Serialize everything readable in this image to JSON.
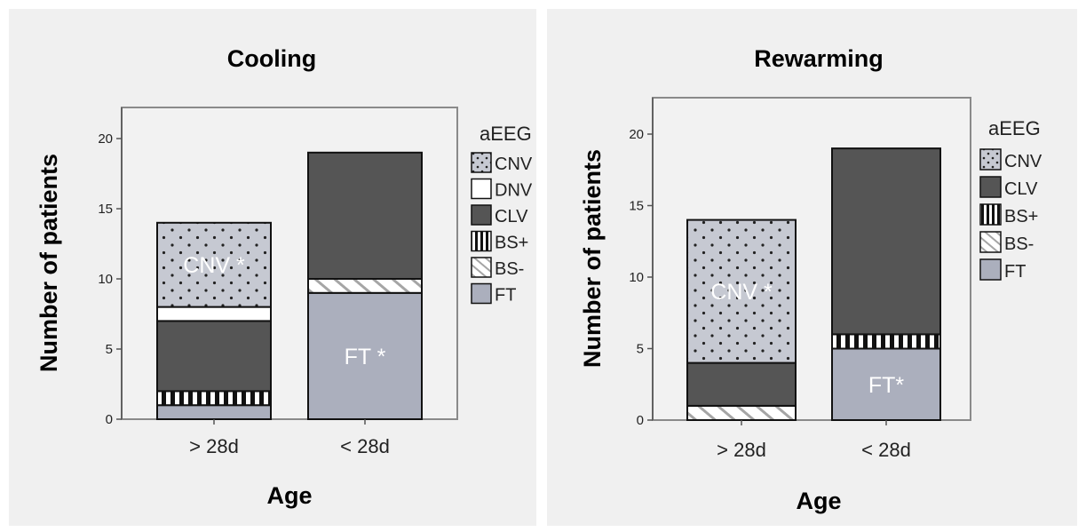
{
  "chart_data": [
    {
      "type": "bar",
      "stacked": true,
      "title": "Cooling",
      "xlabel": "Age",
      "ylabel": "Number of patients",
      "ylim": [
        0,
        20
      ],
      "yticks": [
        0,
        5,
        10,
        15,
        20
      ],
      "categories": [
        "> 28d",
        "< 28d"
      ],
      "legend_title": "aEEG",
      "legend": [
        "CNV",
        "DNV",
        "CLV",
        "BS+",
        "BS-",
        "FT"
      ],
      "series": [
        {
          "name": "FT",
          "values": [
            1,
            9
          ]
        },
        {
          "name": "BS+",
          "values": [
            1,
            0
          ]
        },
        {
          "name": "BS-",
          "values": [
            0,
            1
          ]
        },
        {
          "name": "CLV",
          "values": [
            5,
            9
          ]
        },
        {
          "name": "DNV",
          "values": [
            1,
            0
          ]
        },
        {
          "name": "CNV",
          "values": [
            6,
            0
          ]
        }
      ],
      "annotations": [
        {
          "series": "CNV",
          "category": "> 28d",
          "text": "CNV *"
        },
        {
          "series": "FT",
          "category": "< 28d",
          "text": "FT *"
        }
      ]
    },
    {
      "type": "bar",
      "stacked": true,
      "title": "Rewarming",
      "xlabel": "Age",
      "ylabel": "Number of patients",
      "ylim": [
        0,
        20
      ],
      "yticks": [
        0,
        5,
        10,
        15,
        20
      ],
      "categories": [
        "> 28d",
        "< 28d"
      ],
      "legend_title": "aEEG",
      "legend": [
        "CNV",
        "CLV",
        "BS+",
        "BS-",
        "FT"
      ],
      "series": [
        {
          "name": "FT",
          "values": [
            0,
            5
          ]
        },
        {
          "name": "BS-",
          "values": [
            1,
            0
          ]
        },
        {
          "name": "BS+",
          "values": [
            0,
            1
          ]
        },
        {
          "name": "CLV",
          "values": [
            3,
            13
          ]
        },
        {
          "name": "CNV",
          "values": [
            10,
            0
          ]
        }
      ],
      "annotations": [
        {
          "series": "CNV",
          "category": "> 28d",
          "text": "CNV *"
        },
        {
          "series": "FT",
          "category": "< 28d",
          "text": "FT*"
        }
      ]
    }
  ],
  "styles": {
    "CNV": {
      "fill": "#c6c9d2",
      "pattern": "dots"
    },
    "DNV": {
      "fill": "#ffffff",
      "pattern": "none"
    },
    "CLV": {
      "fill": "#555555",
      "pattern": "none"
    },
    "BS+": {
      "fill": "#ffffff",
      "pattern": "vstripes"
    },
    "BS-": {
      "fill": "#ffffff",
      "pattern": "diagonal"
    },
    "FT": {
      "fill": "#abafbd",
      "pattern": "none"
    }
  },
  "colors": {
    "background": "#ffffff",
    "panel_bg": "#f0f0f0",
    "plot_bg": "#f2f2f2",
    "frame": "#8a8a8a"
  }
}
